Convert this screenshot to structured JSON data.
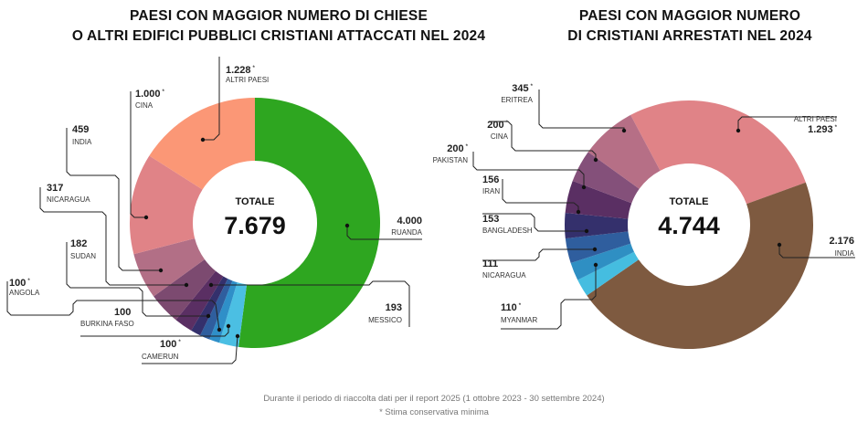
{
  "chart_data": [
    {
      "type": "pie",
      "title": "PAESI CON MAGGIOR NUMERO DI CHIESE O ALTRI EDIFICI PUBBLICI CRISTIANI ATTACCATI NEL 2024",
      "title_lines": [
        "PAESI CON MAGGIOR NUMERO DI CHIESE",
        "O ALTRI EDIFICI PUBBLICI CRISTIANI ATTACCATI NEL 2024"
      ],
      "center_label": "TOTALE",
      "total": 7679,
      "total_label": "7.679",
      "slices": [
        {
          "name": "RUANDA",
          "value": 4000,
          "label": "4.000",
          "estimate": false,
          "color": "#2ea620"
        },
        {
          "name": "MESSICO",
          "value": 193,
          "label": "193",
          "estimate": false,
          "color": "#4bbfe3"
        },
        {
          "name": "CAMERUN",
          "value": 100,
          "label": "100",
          "estimate": true,
          "color": "#2f8fc8"
        },
        {
          "name": "BURKINA FASO",
          "value": 100,
          "label": "100",
          "estimate": false,
          "color": "#2f5e9e"
        },
        {
          "name": "ANGOLA",
          "value": 100,
          "label": "100",
          "estimate": true,
          "color": "#34306c"
        },
        {
          "name": "SUDAN",
          "value": 182,
          "label": "182",
          "estimate": false,
          "color": "#5a2f63"
        },
        {
          "name": "NICARAGUA",
          "value": 317,
          "label": "317",
          "estimate": false,
          "color": "#7c4a70"
        },
        {
          "name": "INDIA",
          "value": 459,
          "label": "459",
          "estimate": false,
          "color": "#b26f86"
        },
        {
          "name": "CINA",
          "value": 1000,
          "label": "1.000",
          "estimate": true,
          "color": "#e08387"
        },
        {
          "name": "ALTRI PAESI",
          "value": 1228,
          "label": "1.228",
          "estimate": true,
          "color": "#fb9776"
        }
      ]
    },
    {
      "type": "pie",
      "title": "PAESI CON MAGGIOR NUMERO DI CRISTIANI ARRESTATI NEL 2024",
      "title_lines": [
        "PAESI CON MAGGIOR NUMERO",
        "DI CRISTIANI ARRESTATI NEL 2024"
      ],
      "center_label": "TOTALE",
      "total": 4744,
      "total_label": "4.744",
      "slices": [
        {
          "name": "ALTRI PAESI",
          "value": 1293,
          "label": "1.293",
          "estimate": true,
          "color": "#e08387"
        },
        {
          "name": "INDIA",
          "value": 2176,
          "label": "2.176",
          "estimate": false,
          "color": "#7e5a40"
        },
        {
          "name": "MYANMAR",
          "value": 110,
          "label": "110",
          "estimate": true,
          "color": "#45bde0"
        },
        {
          "name": "NICARAGUA",
          "value": 111,
          "label": "111",
          "estimate": false,
          "color": "#2f8fc3"
        },
        {
          "name": "BANGLADESH",
          "value": 153,
          "label": "153",
          "estimate": false,
          "color": "#2f5e9e"
        },
        {
          "name": "IRAN",
          "value": 156,
          "label": "156",
          "estimate": false,
          "color": "#34306c"
        },
        {
          "name": "PAKISTAN",
          "value": 200,
          "label": "200",
          "estimate": true,
          "color": "#5a2f63"
        },
        {
          "name": "CINA",
          "value": 200,
          "label": "200",
          "estimate": true,
          "color": "#84507a"
        },
        {
          "name": "ERITREA",
          "value": 345,
          "label": "345",
          "estimate": true,
          "color": "#b66f86"
        }
      ]
    }
  ],
  "footer": {
    "line1": "Durante il periodo di riaccolta dati per il report 2025 (1 ottobre 2023 - 30 settembre 2024)",
    "line2": "* Stima conservativa minima"
  },
  "asterisk": "*"
}
